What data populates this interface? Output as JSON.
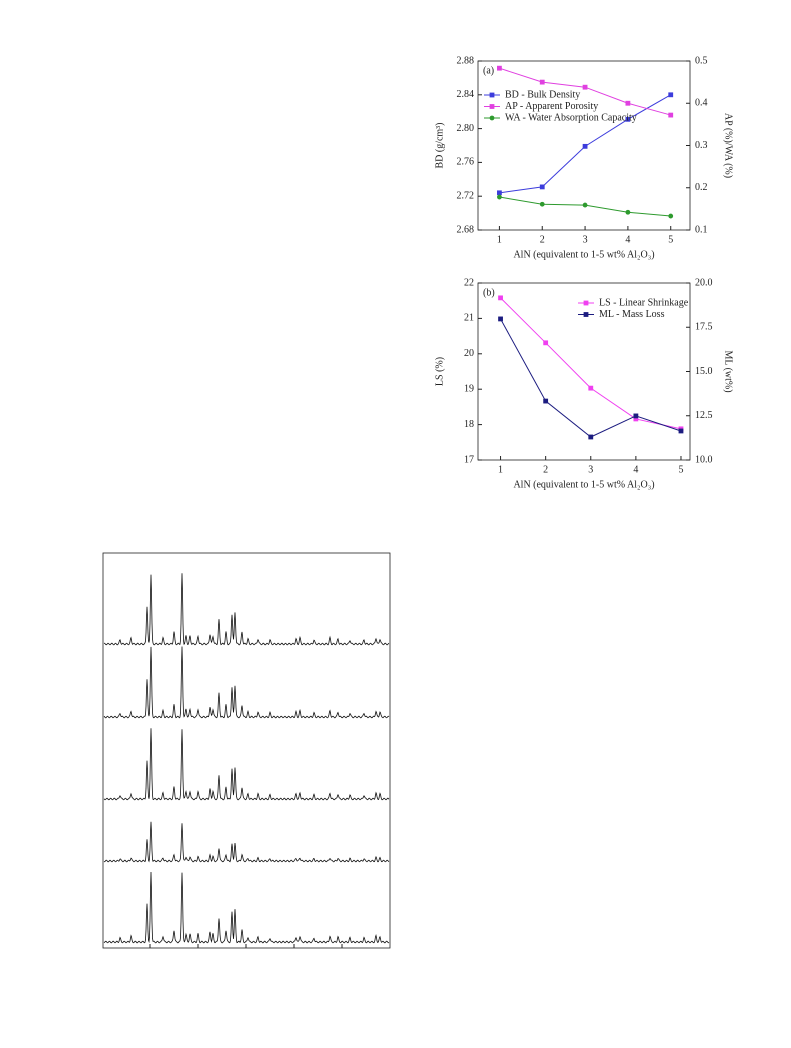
{
  "chart_data": [
    {
      "type": "line",
      "panel_label": "(a)",
      "y_label": "BD (g/cm³)",
      "y2_label": "AP (%)/WA (%)",
      "x_label": "AlN (equivalent to 1-5 wt% Al₂O₃)",
      "x": [
        1,
        2,
        3,
        4,
        5
      ],
      "xlim": [
        0.5,
        5.45
      ],
      "xticks": [
        1,
        2,
        3,
        4,
        5
      ],
      "ylim": [
        2.68,
        2.88
      ],
      "yticks": [
        2.68,
        2.72,
        2.76,
        {
          "value": 2.8,
          "label": "2.80"
        },
        2.84,
        2.88
      ],
      "y2lim": [
        0.1,
        0.5
      ],
      "y2ticks": [
        0.1,
        0.2,
        0.3,
        0.4,
        0.5
      ],
      "legend": "upper left",
      "series": [
        {
          "name": "BD - Bulk Density",
          "color": "#3c3cdc",
          "marker": "square",
          "values": [
            2.724,
            2.731,
            2.779,
            2.811,
            2.84
          ]
        },
        {
          "name": "AP - Apparent Porosity",
          "color": "#e040e0",
          "marker": "square",
          "axis": "y2",
          "values": [
            0.483,
            0.45,
            0.438,
            0.4,
            0.372
          ]
        },
        {
          "name": "WA - Water Absorption Capacity",
          "color": "#2e9a2e",
          "marker": "circle",
          "axis": "y2",
          "values": [
            0.178,
            0.161,
            0.159,
            0.142,
            0.133
          ]
        }
      ]
    },
    {
      "type": "line",
      "panel_label": "(b)",
      "y_label": "LS (%)",
      "y2_label": "ML (wt%)",
      "x_label": "AlN (equivalent to 1-5 wt% Al₂O₃)",
      "x": [
        1,
        2,
        3,
        4,
        5
      ],
      "xlim": [
        0.5,
        5.2
      ],
      "xticks": [
        1,
        2,
        3,
        4,
        5
      ],
      "ylim": [
        17,
        22
      ],
      "yticks": [
        17,
        18,
        19,
        20,
        21,
        22
      ],
      "y2lim": [
        10,
        20
      ],
      "y2ticks": [
        {
          "value": 10,
          "label": "10.0"
        },
        12.5,
        {
          "value": 15,
          "label": "15.0"
        },
        17.5,
        {
          "value": 20,
          "label": "20.0"
        }
      ],
      "legend": "upper right",
      "series": [
        {
          "name": "LS - Linear Shrinkage",
          "color": "#f040f0",
          "marker": "square",
          "values": [
            21.58,
            20.31,
            19.03,
            18.16,
            17.88
          ]
        },
        {
          "name": "ML - Mass Loss",
          "color": "#1c1c80",
          "marker": "square",
          "axis": "y2",
          "values": [
            17.97,
            13.33,
            11.3,
            12.49,
            11.64
          ]
        }
      ]
    }
  ]
}
